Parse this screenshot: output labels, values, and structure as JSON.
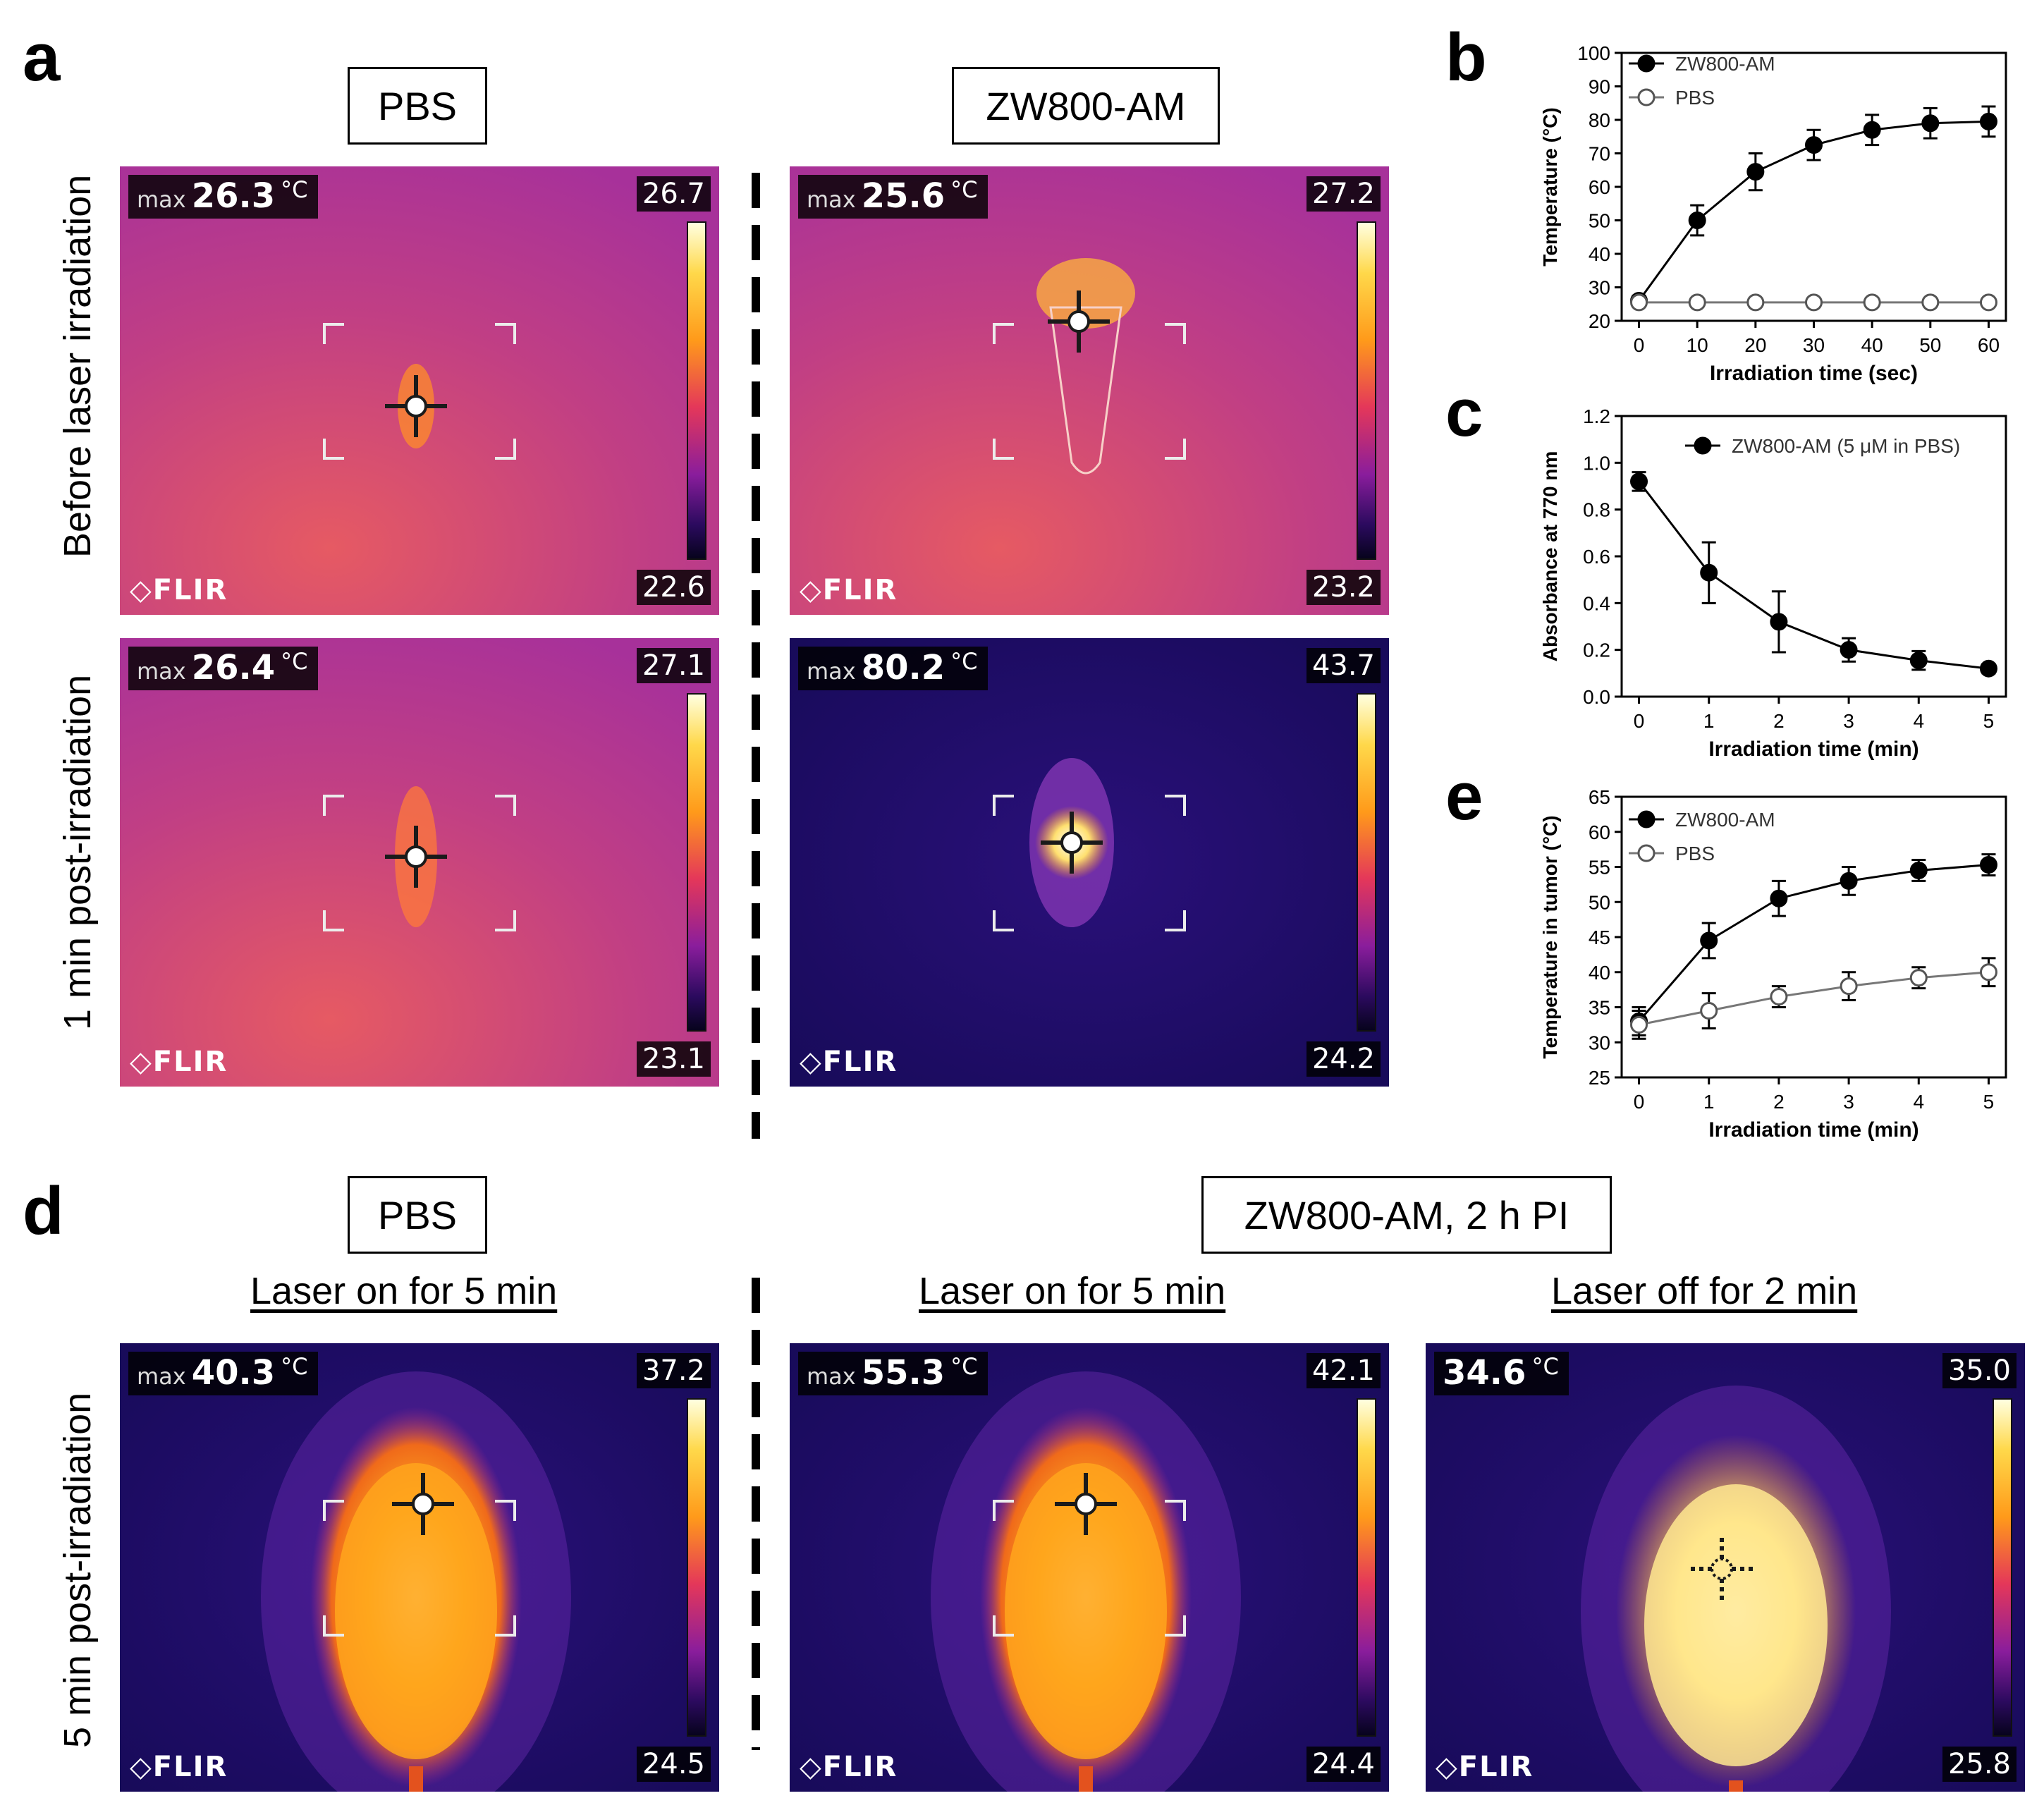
{
  "figure": {
    "panel_labels": {
      "a": "a",
      "b": "b",
      "c": "c",
      "d": "d",
      "e": "e"
    },
    "panel_a": {
      "conditions": [
        "PBS",
        "ZW800-AM"
      ],
      "row_labels": [
        "Before laser irradiation",
        "1 min post-irradiation"
      ],
      "images": [
        {
          "max_label": "max",
          "max_value": "26.3",
          "unit": "°C",
          "scale_top": "26.7",
          "scale_bottom": "22.6",
          "brand": "FLIR",
          "palette": "warm"
        },
        {
          "max_label": "max",
          "max_value": "25.6",
          "unit": "°C",
          "scale_top": "27.2",
          "scale_bottom": "23.2",
          "brand": "FLIR",
          "palette": "warm"
        },
        {
          "max_label": "max",
          "max_value": "26.4",
          "unit": "°C",
          "scale_top": "27.1",
          "scale_bottom": "23.1",
          "brand": "FLIR",
          "palette": "warm"
        },
        {
          "max_label": "max",
          "max_value": "80.2",
          "unit": "°C",
          "scale_top": "43.7",
          "scale_bottom": "24.2",
          "brand": "FLIR",
          "palette": "cold"
        }
      ]
    },
    "panel_d": {
      "conditions": [
        "PBS",
        "ZW800-AM, 2 h PI"
      ],
      "subtitles": [
        "Laser on for 5 min",
        "Laser on for 5 min",
        "Laser off for 2 min"
      ],
      "row_label": "5 min post-irradiation",
      "images": [
        {
          "max_label": "max",
          "max_value": "40.3",
          "unit": "°C",
          "scale_top": "37.2",
          "scale_bottom": "24.5",
          "brand": "FLIR"
        },
        {
          "max_label": "max",
          "max_value": "55.3",
          "unit": "°C",
          "scale_top": "42.1",
          "scale_bottom": "24.4",
          "brand": "FLIR"
        },
        {
          "max_label": "",
          "max_value": "34.6",
          "unit": "°C",
          "scale_top": "35.0",
          "scale_bottom": "25.8",
          "brand": "FLIR"
        }
      ]
    }
  },
  "chart_data": [
    {
      "id": "b",
      "type": "line",
      "xlabel": "Irradiation time (sec)",
      "ylabel": "Temperature (°C)",
      "x": [
        0,
        10,
        20,
        30,
        40,
        50,
        60
      ],
      "xticks": [
        "0",
        "10",
        "20",
        "30",
        "40",
        "50",
        "60"
      ],
      "ylim": [
        20,
        100
      ],
      "yticks": [
        "20",
        "30",
        "40",
        "50",
        "60",
        "70",
        "80",
        "90",
        "100"
      ],
      "series": [
        {
          "name": "ZW800-AM",
          "filled": true,
          "values": [
            26,
            50,
            64.5,
            72.5,
            77,
            79,
            79.5
          ],
          "errors": [
            1.5,
            4.5,
            5.5,
            4.5,
            4.5,
            4.5,
            4.5
          ]
        },
        {
          "name": "PBS",
          "filled": false,
          "values": [
            25.5,
            25.5,
            25.5,
            25.5,
            25.5,
            25.5,
            25.5
          ],
          "errors": [
            0,
            0,
            0,
            0,
            0,
            0,
            0
          ]
        }
      ]
    },
    {
      "id": "c",
      "type": "line",
      "xlabel": "Irradiation time (min)",
      "ylabel": "Absorbance at 770 nm",
      "x": [
        0,
        1,
        2,
        3,
        4,
        5
      ],
      "xticks": [
        "0",
        "1",
        "2",
        "3",
        "4",
        "5"
      ],
      "ylim": [
        0,
        1.2
      ],
      "yticks": [
        "0.0",
        "0.2",
        "0.4",
        "0.6",
        "0.8",
        "1.0",
        "1.2"
      ],
      "series": [
        {
          "name": "ZW800-AM (5 μM in PBS)",
          "filled": true,
          "values": [
            0.92,
            0.53,
            0.32,
            0.2,
            0.155,
            0.12
          ],
          "errors": [
            0.04,
            0.13,
            0.13,
            0.05,
            0.04,
            0.02
          ]
        }
      ]
    },
    {
      "id": "e",
      "type": "line",
      "xlabel": "Irradiation time (min)",
      "ylabel": "Temperature in tumor (°C)",
      "x": [
        0,
        1,
        2,
        3,
        4,
        5
      ],
      "xticks": [
        "0",
        "1",
        "2",
        "3",
        "4",
        "5"
      ],
      "ylim": [
        25,
        65
      ],
      "yticks": [
        "25",
        "30",
        "35",
        "40",
        "45",
        "50",
        "55",
        "60",
        "65"
      ],
      "series": [
        {
          "name": "ZW800-AM",
          "filled": true,
          "values": [
            33,
            44.5,
            50.5,
            53,
            54.5,
            55.3
          ],
          "errors": [
            2,
            2.5,
            2.5,
            2,
            1.5,
            1.5
          ]
        },
        {
          "name": "PBS",
          "filled": false,
          "values": [
            32.5,
            34.5,
            36.5,
            38,
            39.2,
            40
          ],
          "errors": [
            2,
            2.5,
            1.5,
            2,
            1.5,
            2
          ]
        }
      ]
    }
  ]
}
